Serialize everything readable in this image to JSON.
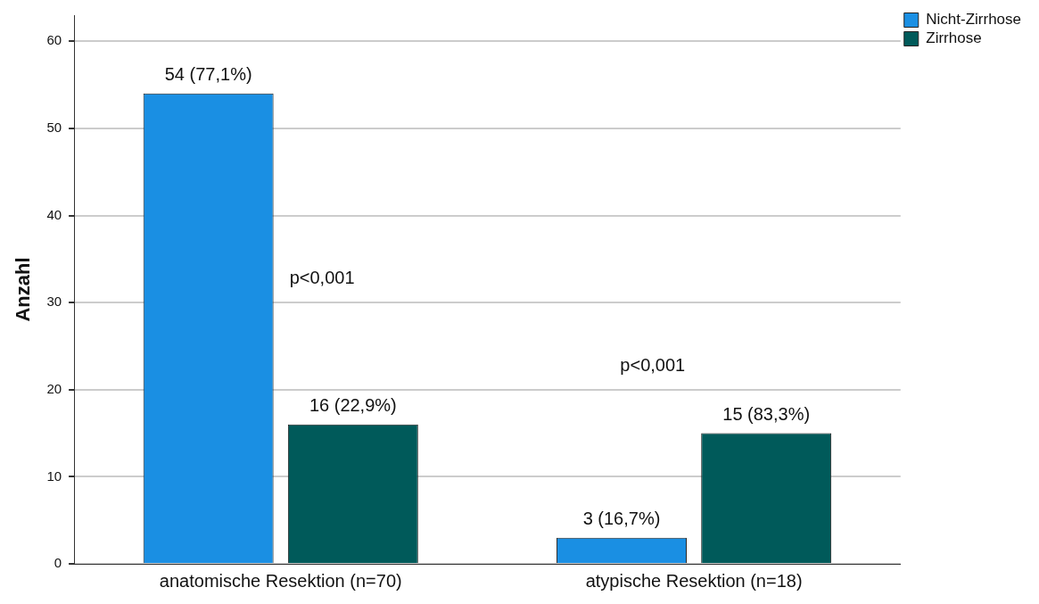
{
  "chart_data": {
    "type": "bar",
    "ylabel": "Anzahl",
    "categories": [
      "anatomische Resektion (n=70)",
      "atypische Resektion (n=18)"
    ],
    "series": [
      {
        "name": "Nicht-Zirrhose",
        "color": "#1a8fe3",
        "values": [
          54,
          3
        ],
        "value_labels": [
          "54 (77,1%)",
          "3 (16,7%)"
        ]
      },
      {
        "name": "Zirrhose",
        "color": "#005a5a",
        "values": [
          16,
          15
        ],
        "value_labels": [
          "16 (22,9%)",
          "15 (83,3%)"
        ]
      }
    ],
    "ylim": [
      0,
      63
    ],
    "yticks": [
      0,
      10,
      20,
      30,
      40,
      50,
      60
    ],
    "grid": "y",
    "legend": "top right",
    "annotations": [
      "p<0,001",
      "p<0,001"
    ]
  }
}
